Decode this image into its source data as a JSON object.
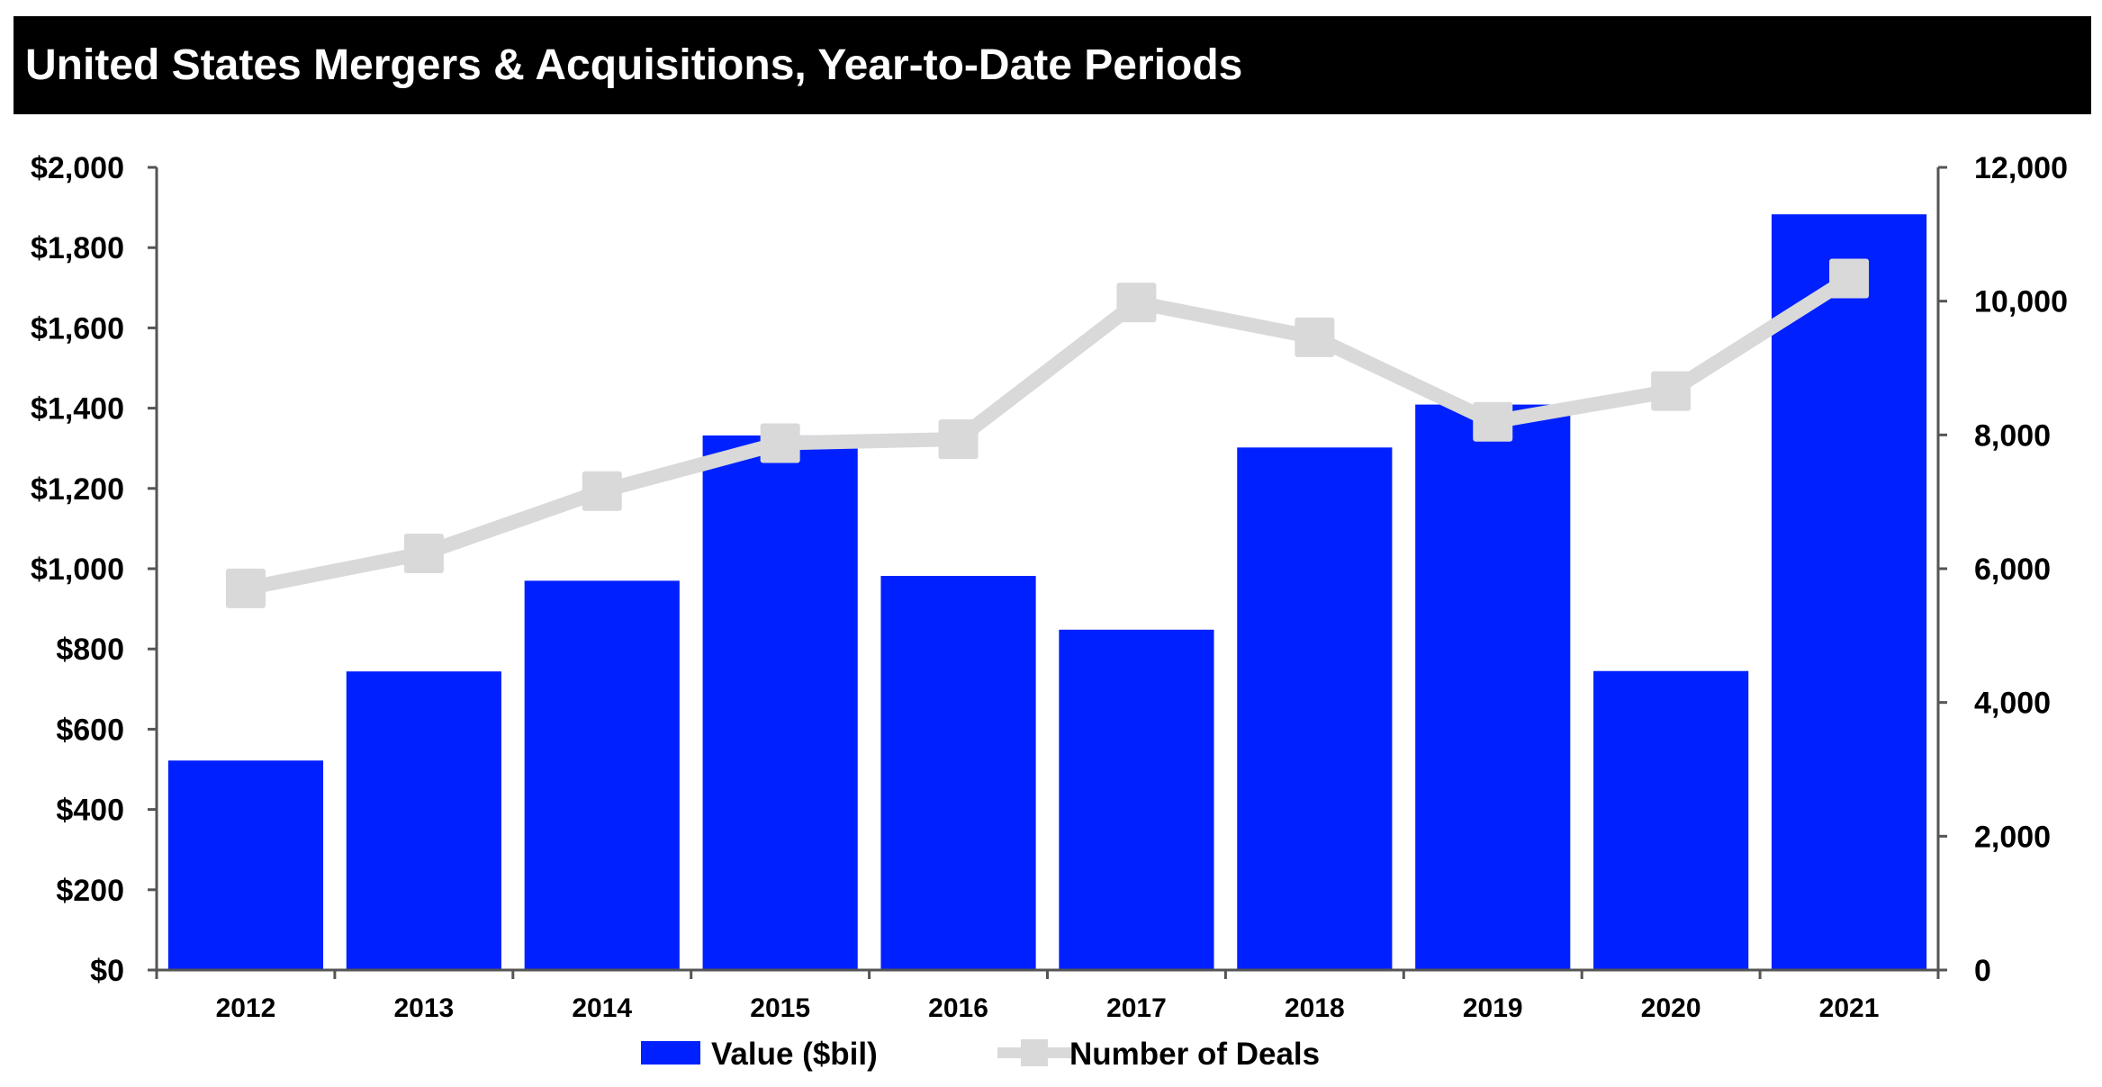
{
  "chart_data": {
    "type": "bar+line",
    "title": "United States Mergers & Acquisitions, Year-to-Date Periods",
    "categories": [
      "2012",
      "2013",
      "2014",
      "2015",
      "2016",
      "2017",
      "2018",
      "2019",
      "2020",
      "2021"
    ],
    "series": [
      {
        "name": "Value ($bil)",
        "type": "bar",
        "axis": "left",
        "color": "#0020ff",
        "values": [
          522,
          744,
          970,
          1332,
          982,
          848,
          1302,
          1409,
          745,
          1883
        ]
      },
      {
        "name": "Number of Deals",
        "type": "line",
        "axis": "right",
        "color": "#d8d9d8",
        "values": [
          5706,
          6229,
          7161,
          7876,
          7936,
          9980,
          9459,
          8196,
          8656,
          10339
        ]
      }
    ],
    "y_left": {
      "range": [
        0,
        2000
      ],
      "ticks": [
        0,
        200,
        400,
        600,
        800,
        1000,
        1200,
        1400,
        1600,
        1800,
        2000
      ],
      "tick_labels": [
        "$0",
        "$200",
        "$400",
        "$600",
        "$800",
        "$1,000",
        "$1,200",
        "$1,400",
        "$1,600",
        "$1,800",
        "$2,000"
      ]
    },
    "y_right": {
      "range": [
        0,
        12000
      ],
      "ticks": [
        0,
        2000,
        4000,
        6000,
        8000,
        10000,
        12000
      ],
      "tick_labels": [
        "0",
        "2,000",
        "4,000",
        "6,000",
        "8,000",
        "10,000",
        "12,000"
      ]
    },
    "grid": false,
    "legend_position": "bottom",
    "title_bar_color": "#000000"
  }
}
